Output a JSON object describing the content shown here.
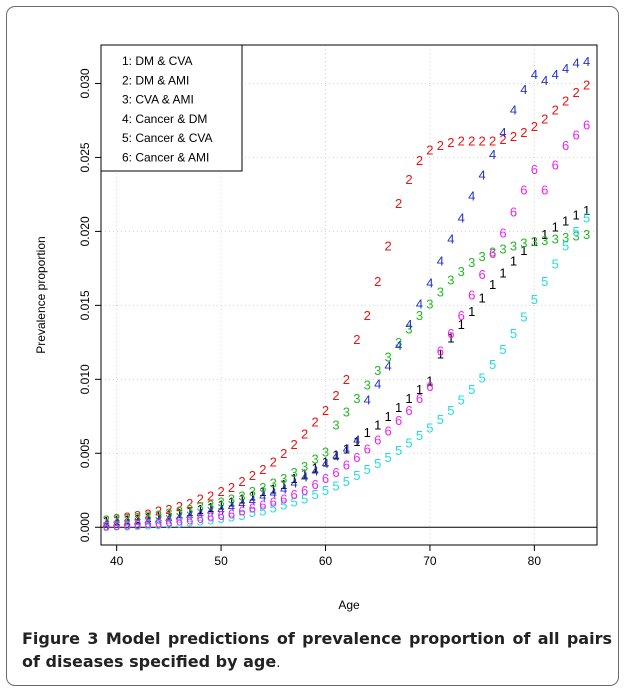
{
  "caption": {
    "label": "Figure 3",
    "text": "Model predictions of prevalence proportion of all pairs of diseases specified by age",
    "end": "."
  },
  "chart_data": {
    "type": "scatter",
    "xlabel": "Age",
    "ylabel": "Prevalence proportion",
    "xlim": [
      38.5,
      86
    ],
    "ylim": [
      -0.0012,
      0.0326
    ],
    "x_ticks": [
      "40",
      "50",
      "60",
      "70",
      "80"
    ],
    "y_ticks": [
      "0.000",
      "0.005",
      "0.010",
      "0.015",
      "0.020",
      "0.025",
      "0.030"
    ],
    "grid": true,
    "legend_position": "top-left",
    "x": [
      39,
      40,
      41,
      42,
      43,
      44,
      45,
      46,
      47,
      48,
      49,
      50,
      51,
      52,
      53,
      54,
      55,
      56,
      57,
      58,
      59,
      60,
      61,
      62,
      63,
      64,
      65,
      66,
      67,
      68,
      69,
      70,
      71,
      72,
      73,
      74,
      75,
      76,
      77,
      78,
      79,
      80,
      81,
      82,
      83,
      84,
      85
    ],
    "series": [
      {
        "name": "1: DM & CVA",
        "marker": "1",
        "color": "#000000",
        "values": [
          0.0004,
          0.00045,
          0.0005,
          0.00057,
          0.00065,
          0.00073,
          0.00083,
          0.00094,
          0.00107,
          0.0012,
          0.00135,
          0.0015,
          0.0017,
          0.0019,
          0.0021,
          0.0024,
          0.0026,
          0.0029,
          0.0033,
          0.0036,
          0.004,
          0.0044,
          0.0049,
          0.0053,
          0.0058,
          0.0064,
          0.0069,
          0.0075,
          0.0081,
          0.0087,
          0.0093,
          0.0099,
          0.0117,
          0.0128,
          0.0137,
          0.0146,
          0.0155,
          0.0164,
          0.0172,
          0.018,
          0.0187,
          0.0193,
          0.0198,
          0.0203,
          0.0207,
          0.0211,
          0.0214
        ]
      },
      {
        "name": "2: DM & AMI",
        "marker": "2",
        "color": "#ee1111",
        "values": [
          0.0005,
          0.0006,
          0.0007,
          0.0008,
          0.0009,
          0.0011,
          0.0012,
          0.0014,
          0.0016,
          0.0019,
          0.0021,
          0.0024,
          0.0027,
          0.0031,
          0.0035,
          0.0039,
          0.0044,
          0.005,
          0.0056,
          0.0063,
          0.0071,
          0.0079,
          0.0089,
          0.01,
          0.0127,
          0.0143,
          0.0166,
          0.019,
          0.0219,
          0.0235,
          0.0248,
          0.0255,
          0.0258,
          0.026,
          0.0261,
          0.0261,
          0.0261,
          0.0261,
          0.0262,
          0.0264,
          0.0267,
          0.0271,
          0.0276,
          0.0282,
          0.0288,
          0.0294,
          0.0299
        ]
      },
      {
        "name": "3: CVA & AMI",
        "marker": "3",
        "color": "#22bb22",
        "values": [
          0.0005,
          0.00055,
          0.0006,
          0.00067,
          0.00075,
          0.00084,
          0.00095,
          0.0011,
          0.0012,
          0.0014,
          0.0015,
          0.0017,
          0.0019,
          0.0021,
          0.0024,
          0.0027,
          0.003,
          0.0033,
          0.0037,
          0.0041,
          0.0046,
          0.0051,
          0.0069,
          0.0078,
          0.0087,
          0.0096,
          0.0106,
          0.0115,
          0.0125,
          0.0134,
          0.0143,
          0.0151,
          0.0159,
          0.0167,
          0.0173,
          0.0179,
          0.0183,
          0.0186,
          0.0188,
          0.019,
          0.0192,
          0.0193,
          0.0194,
          0.0195,
          0.0196,
          0.0197,
          0.0198
        ]
      },
      {
        "name": "4: Cancer & DM",
        "marker": "4",
        "color": "#2233cc",
        "values": [
          0.0002,
          0.00025,
          0.0003,
          0.00036,
          0.00042,
          0.0005,
          0.00058,
          0.00068,
          0.00079,
          0.00092,
          0.0011,
          0.0012,
          0.0014,
          0.0016,
          0.0018,
          0.0021,
          0.0023,
          0.0026,
          0.003,
          0.0034,
          0.0038,
          0.0043,
          0.0048,
          0.0053,
          0.0059,
          0.0086,
          0.0097,
          0.0109,
          0.0123,
          0.0137,
          0.0151,
          0.0165,
          0.018,
          0.0195,
          0.0209,
          0.0224,
          0.0238,
          0.0252,
          0.0267,
          0.0282,
          0.0296,
          0.0306,
          0.0302,
          0.0306,
          0.031,
          0.0314,
          0.0315
        ]
      },
      {
        "name": "5: Cancer & CVA",
        "marker": "5",
        "color": "#22dddd",
        "values": [
          5e-05,
          7e-05,
          0.0001,
          0.00012,
          0.00015,
          0.00019,
          0.00023,
          0.00028,
          0.00034,
          0.00041,
          0.0005,
          0.0006,
          0.0007,
          0.0008,
          0.001,
          0.0011,
          0.0013,
          0.0015,
          0.0017,
          0.0019,
          0.0022,
          0.0025,
          0.0028,
          0.0031,
          0.0035,
          0.0039,
          0.0043,
          0.0047,
          0.0052,
          0.0057,
          0.0062,
          0.0067,
          0.0073,
          0.0079,
          0.0086,
          0.0093,
          0.0101,
          0.011,
          0.012,
          0.0131,
          0.0142,
          0.0154,
          0.0166,
          0.0178,
          0.019,
          0.02,
          0.0209
        ]
      },
      {
        "name": "6: Cancer & AMI",
        "marker": "6",
        "color": "#ee22ee",
        "values": [
          0.0001,
          0.00013,
          0.00016,
          0.0002,
          0.00024,
          0.00029,
          0.00035,
          0.00042,
          0.0005,
          0.0006,
          0.0007,
          0.0008,
          0.0009,
          0.0011,
          0.0013,
          0.0015,
          0.0017,
          0.0019,
          0.0022,
          0.0025,
          0.0029,
          0.0033,
          0.0037,
          0.0042,
          0.0047,
          0.0053,
          0.0059,
          0.0065,
          0.0072,
          0.0079,
          0.0087,
          0.0095,
          0.0119,
          0.0131,
          0.0143,
          0.0157,
          0.0171,
          0.0185,
          0.0199,
          0.0213,
          0.0228,
          0.0242,
          0.0228,
          0.0245,
          0.0258,
          0.0265,
          0.0272
        ]
      }
    ]
  }
}
